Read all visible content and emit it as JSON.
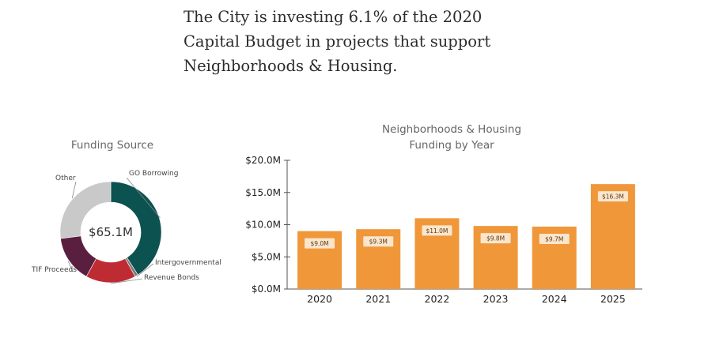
{
  "headline": {
    "lines": [
      "The City is investing 6.1% of the 2020",
      "Capital Budget in projects that support",
      "Neighborhoods & Housing."
    ]
  },
  "chart_data": [
    {
      "type": "pie",
      "title": "Funding Source",
      "center_label": "$65.1M",
      "slices": [
        {
          "label": "GO Borrowing",
          "value": 41,
          "color": "#0b5250"
        },
        {
          "label": "Intergovernmental",
          "value": 1,
          "color": "#7a7a7a"
        },
        {
          "label": "Revenue Bonds",
          "value": 16,
          "color": "#bf2b33"
        },
        {
          "label": "TIF Proceeds",
          "value": 15,
          "color": "#5a1f3f"
        },
        {
          "label": "Other",
          "value": 27,
          "color": "#c9c9c9"
        }
      ]
    },
    {
      "type": "bar",
      "title_lines": [
        "Neighborhoods & Housing",
        "Funding by Year"
      ],
      "categories": [
        "2020",
        "2021",
        "2022",
        "2023",
        "2024",
        "2025"
      ],
      "values": [
        9.0,
        9.3,
        11.0,
        9.8,
        9.7,
        16.3
      ],
      "data_labels": [
        "$9.0M",
        "$9.3M",
        "$11.0M",
        "$9.8M",
        "$9.7M",
        "$16.3M"
      ],
      "ylim": [
        0,
        20
      ],
      "yticks": [
        {
          "value": 0,
          "label": "$0.0M"
        },
        {
          "value": 5,
          "label": "$5.0M"
        },
        {
          "value": 10,
          "label": "$10.0M"
        },
        {
          "value": 15,
          "label": "$15.0M"
        },
        {
          "value": 20,
          "label": "$20.0M"
        }
      ],
      "bar_color": "#f0973a",
      "label_box_color": "#fbe6cc",
      "grid": false
    }
  ]
}
